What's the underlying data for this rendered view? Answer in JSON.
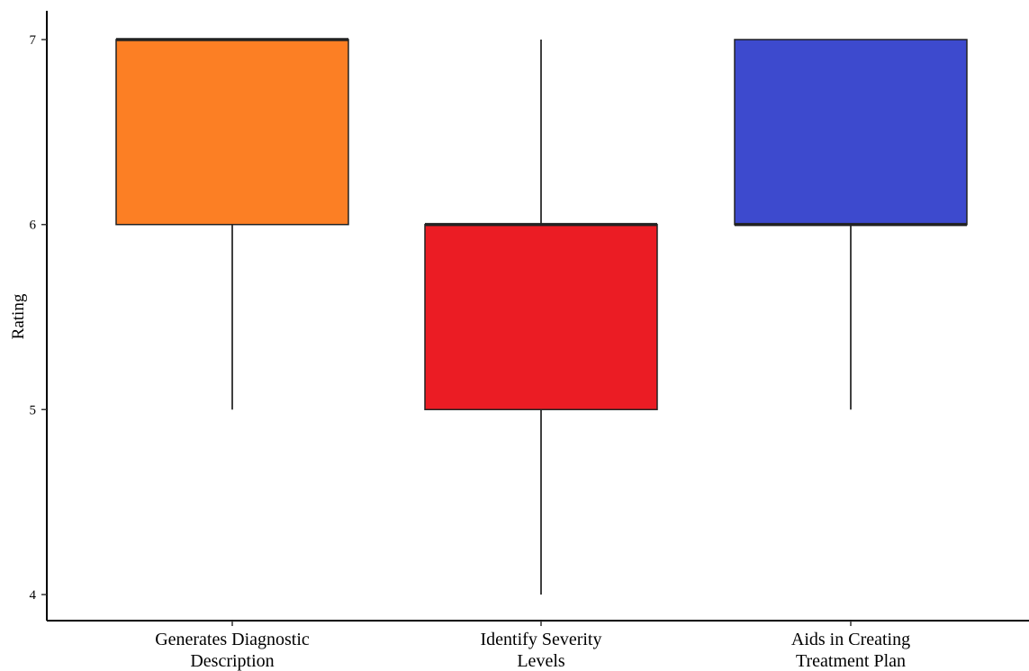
{
  "chart_data": {
    "type": "boxplot",
    "title": "",
    "xlabel": "",
    "ylabel": "Rating",
    "ylim": [
      3.9,
      7.15
    ],
    "yticks": [
      4,
      5,
      6,
      7
    ],
    "grid": false,
    "legend": "none",
    "categories": [
      [
        "Generates Diagnostic",
        "Description"
      ],
      [
        "Identify Severity",
        "Levels"
      ],
      [
        "Aids in Creating",
        "Treatment Plan"
      ]
    ],
    "boxes": [
      {
        "min": 5,
        "q1": 6,
        "median": 7,
        "q3": 7,
        "max": 7,
        "color": "#FC7F24"
      },
      {
        "min": 4,
        "q1": 5,
        "median": 6,
        "q3": 6,
        "max": 7,
        "color": "#EB1C24"
      },
      {
        "min": 5,
        "q1": 6,
        "median": 6,
        "q3": 7,
        "max": 7,
        "color": "#3D4ACE"
      }
    ]
  }
}
